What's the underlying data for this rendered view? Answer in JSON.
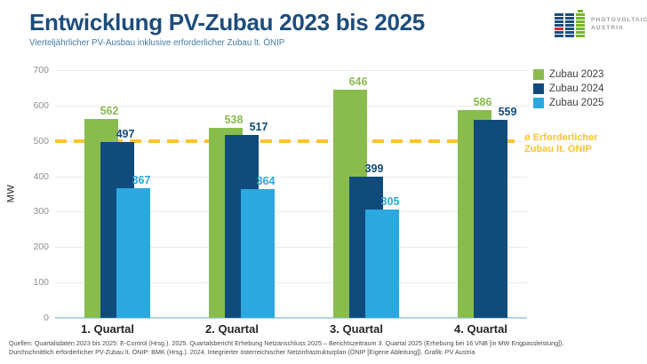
{
  "header": {
    "title": "Entwicklung PV-Zubau 2023 bis 2025",
    "subtitle": "Vierteljährlicher PV-Ausbau inklusive erforderlicher Zubau lt. ÖNIP",
    "logo": {
      "icon": "solar-panel-battery-icon",
      "line1": "PHOTOVOLTAIC",
      "line2": "AUSTRIA"
    }
  },
  "chart_data": {
    "type": "bar",
    "title": "Entwicklung PV-Zubau 2023 bis 2025",
    "subtitle": "Vierteljährlicher PV-Ausbau inklusive erforderlicher Zubau lt. ÖNIP",
    "categories": [
      "1. Quartal",
      "2. Quartal",
      "3. Quartal",
      "4. Quartal"
    ],
    "series": [
      {
        "name": "Zubau 2023",
        "color": "#8ABC4D",
        "values": [
          562,
          538,
          646,
          586
        ]
      },
      {
        "name": "Zubau 2024",
        "color": "#104B7C",
        "values": [
          497,
          517,
          399,
          559
        ]
      },
      {
        "name": "Zubau 2025",
        "color": "#2AA9E0",
        "values": [
          367,
          364,
          305,
          null
        ]
      }
    ],
    "reference_line": {
      "value": 500,
      "color": "#FDC330",
      "label_line1": "ø Erforderlicher",
      "label_line2": "Zubau lt. ÖNIP"
    },
    "ylabel": "MW",
    "xlabel": "",
    "ylim": [
      0,
      700
    ],
    "yticks": [
      0,
      100,
      200,
      300,
      400,
      500,
      600,
      700
    ],
    "grid": true,
    "legend_position": "top-right"
  },
  "footer": {
    "line1": "Quellen: Quartalsdaten 2023 bis 2025: E-Control (Hrsg.). 2025. Quartalsbericht Erhebung Netzanschluss 2025 – Berichtszeitraum 3. Quartal 2025 (Erhebung bei 16 VNB [in MW Engpassleistung]).",
    "line2": "Durchschnittlich erforderlicher PV-Zubau lt. ÖNIP: BMK (Hrsg.). 2024. Integrierter österreichischer Netzinfrastrukturplan (ÖNIP [Eigene Ableitung]). Grafik: PV Austria"
  },
  "colors": {
    "title": "#1C4D7C",
    "subtitle": "#447AA9",
    "accent_yellow": "#FDC330",
    "logo_blue": "#1C4E7D",
    "logo_green": "#76B82A",
    "logo_red": "#D9262C"
  }
}
